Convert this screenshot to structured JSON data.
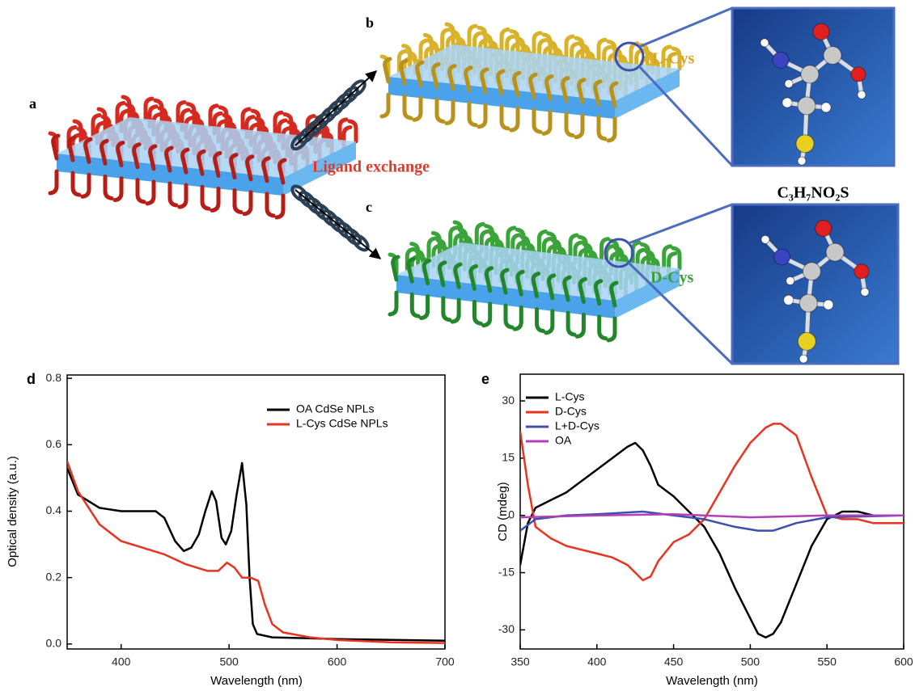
{
  "figure": {
    "panel_labels": [
      "a",
      "b",
      "c",
      "d",
      "e"
    ],
    "ligand_exchange": "Ligand exchange",
    "l_cys": "L-Cys",
    "d_cys": "D-Cys",
    "formula": "C₃H₇NO₂S"
  },
  "chart_data": [
    {
      "type": "line",
      "xlabel": "Wavelength (nm)",
      "ylabel": "Optical density (a.u.)",
      "xlim": [
        350,
        700
      ],
      "ylim": [
        -0.015,
        0.81
      ],
      "xticks": [
        400,
        500,
        600,
        700
      ],
      "yticks": [
        {
          "value": 0,
          "label": "0.0"
        },
        0.2,
        0.4,
        0.6,
        0.8
      ],
      "legend": "upper right",
      "series": [
        {
          "name": "OA CdSe NPLs",
          "color": "#000000",
          "x": [
            350,
            360,
            380,
            400,
            420,
            432,
            440,
            450,
            458,
            465,
            472,
            478,
            484,
            488,
            493,
            497,
            502,
            507,
            512,
            516,
            519,
            522,
            526,
            540,
            600,
            700
          ],
          "values": [
            0.53,
            0.45,
            0.41,
            0.4,
            0.4,
            0.4,
            0.38,
            0.31,
            0.28,
            0.29,
            0.33,
            0.4,
            0.46,
            0.43,
            0.32,
            0.3,
            0.34,
            0.45,
            0.545,
            0.42,
            0.2,
            0.06,
            0.03,
            0.02,
            0.015,
            0.01
          ]
        },
        {
          "name": "L-Cys CdSe NPLs",
          "color": "#e8331f",
          "x": [
            350,
            360,
            380,
            400,
            420,
            440,
            460,
            480,
            490,
            498,
            505,
            512,
            520,
            527,
            533,
            540,
            550,
            575,
            600,
            650,
            700
          ],
          "values": [
            0.55,
            0.46,
            0.36,
            0.31,
            0.29,
            0.27,
            0.24,
            0.22,
            0.22,
            0.245,
            0.23,
            0.2,
            0.2,
            0.19,
            0.12,
            0.06,
            0.035,
            0.02,
            0.012,
            0.005,
            0.003
          ]
        }
      ]
    },
    {
      "type": "line",
      "xlabel": "Wavelength (nm)",
      "ylabel": "CD (mdeg)",
      "xlim": [
        350,
        600
      ],
      "ylim": [
        -35,
        37
      ],
      "xticks": [
        350,
        400,
        450,
        500,
        550,
        600
      ],
      "yticks": [
        -30,
        -15,
        0,
        15,
        30
      ],
      "legend": "upper left",
      "series": [
        {
          "name": "L-Cys",
          "color": "#000000",
          "x": [
            350,
            355,
            360,
            370,
            380,
            390,
            400,
            410,
            420,
            425,
            430,
            435,
            440,
            450,
            460,
            470,
            480,
            490,
            500,
            505,
            510,
            515,
            520,
            530,
            540,
            550,
            560,
            570,
            580,
            600
          ],
          "values": [
            -13,
            -2,
            2,
            4,
            6,
            9,
            12,
            15,
            18,
            19,
            17,
            13,
            8,
            5,
            1,
            -3,
            -10,
            -19,
            -27,
            -31,
            -32,
            -31,
            -28,
            -18,
            -8,
            -1,
            1,
            1,
            0,
            0
          ]
        },
        {
          "name": "D-Cys",
          "color": "#e8331f",
          "x": [
            350,
            355,
            360,
            370,
            380,
            390,
            400,
            410,
            420,
            430,
            435,
            440,
            450,
            460,
            470,
            480,
            490,
            500,
            510,
            515,
            520,
            530,
            540,
            550,
            560,
            570,
            580,
            600
          ],
          "values": [
            22,
            8,
            -3,
            -6,
            -8,
            -9,
            -10,
            -11,
            -13,
            -17,
            -16,
            -12,
            -7,
            -5,
            -1,
            6,
            13,
            19,
            23,
            24,
            24,
            21,
            10,
            0,
            -1,
            -1,
            -2,
            -2
          ]
        },
        {
          "name": "L+D-Cys",
          "color": "#3b4fb0",
          "x": [
            350,
            360,
            380,
            400,
            430,
            450,
            470,
            490,
            505,
            515,
            530,
            550,
            600
          ],
          "values": [
            -4,
            -1,
            0,
            0.3,
            1,
            0,
            -1,
            -3,
            -4,
            -4,
            -2,
            -0.5,
            0
          ]
        },
        {
          "name": "OA",
          "color": "#b13fb5",
          "x": [
            350,
            400,
            450,
            500,
            550,
            600
          ],
          "values": [
            -0.5,
            0,
            0.3,
            -0.5,
            0,
            0
          ]
        }
      ]
    }
  ]
}
